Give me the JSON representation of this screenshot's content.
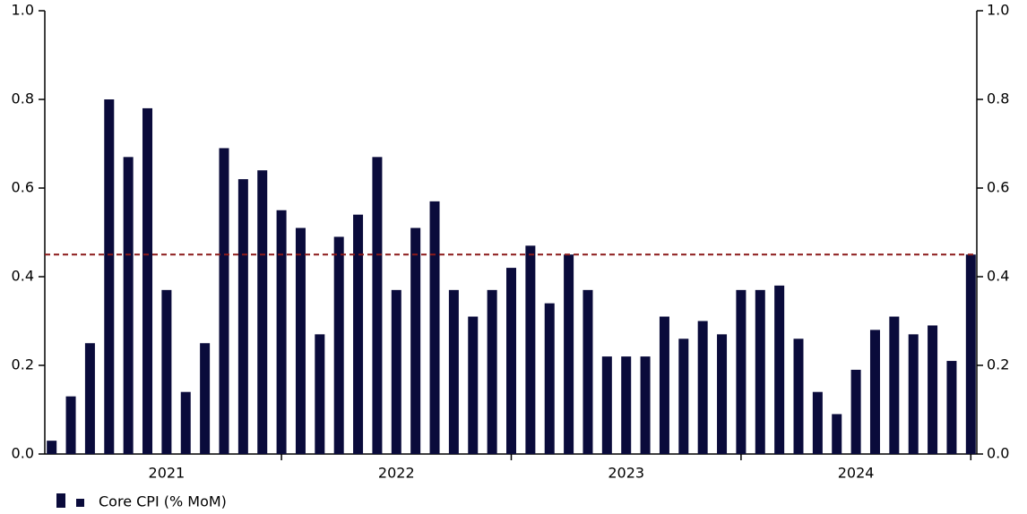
{
  "chart_data": {
    "type": "bar",
    "categories": [
      null,
      null,
      null,
      null,
      null,
      null,
      "2021",
      null,
      null,
      null,
      null,
      null,
      null,
      null,
      null,
      null,
      null,
      null,
      "2022",
      null,
      null,
      null,
      null,
      null,
      null,
      null,
      null,
      null,
      null,
      null,
      "2023",
      null,
      null,
      null,
      null,
      null,
      null,
      null,
      null,
      null,
      null,
      null,
      "2024",
      null,
      null,
      null,
      null,
      null,
      null
    ],
    "series": [
      {
        "name": "Core CPI (% MoM)",
        "color": "#0a0b3b",
        "values": [
          0.03,
          0.13,
          0.25,
          0.8,
          0.67,
          0.78,
          0.37,
          0.14,
          0.25,
          0.69,
          0.62,
          0.64,
          0.55,
          0.51,
          0.27,
          0.49,
          0.54,
          0.67,
          0.37,
          0.51,
          0.57,
          0.37,
          0.31,
          0.37,
          0.42,
          0.47,
          0.34,
          0.45,
          0.37,
          0.22,
          0.22,
          0.22,
          0.31,
          0.26,
          0.3,
          0.27,
          0.37,
          0.37,
          0.38,
          0.26,
          0.14,
          0.09,
          0.19,
          0.28,
          0.31,
          0.27,
          0.29,
          0.21,
          0.45
        ]
      }
    ],
    "hline": {
      "value": 0.45,
      "color": "#8b1a1a"
    },
    "ylim": [
      0,
      1
    ],
    "yticks": [
      {
        "value": 0,
        "label": "0.0"
      },
      0.2,
      0.4,
      0.6,
      0.8,
      {
        "value": 1,
        "label": "1.0"
      }
    ],
    "y2lim": [
      0,
      1
    ],
    "y2ticks": [
      {
        "value": 0,
        "label": "0.0"
      },
      0.2,
      0.4,
      0.6,
      0.8,
      {
        "value": 1,
        "label": "1.0"
      }
    ]
  }
}
